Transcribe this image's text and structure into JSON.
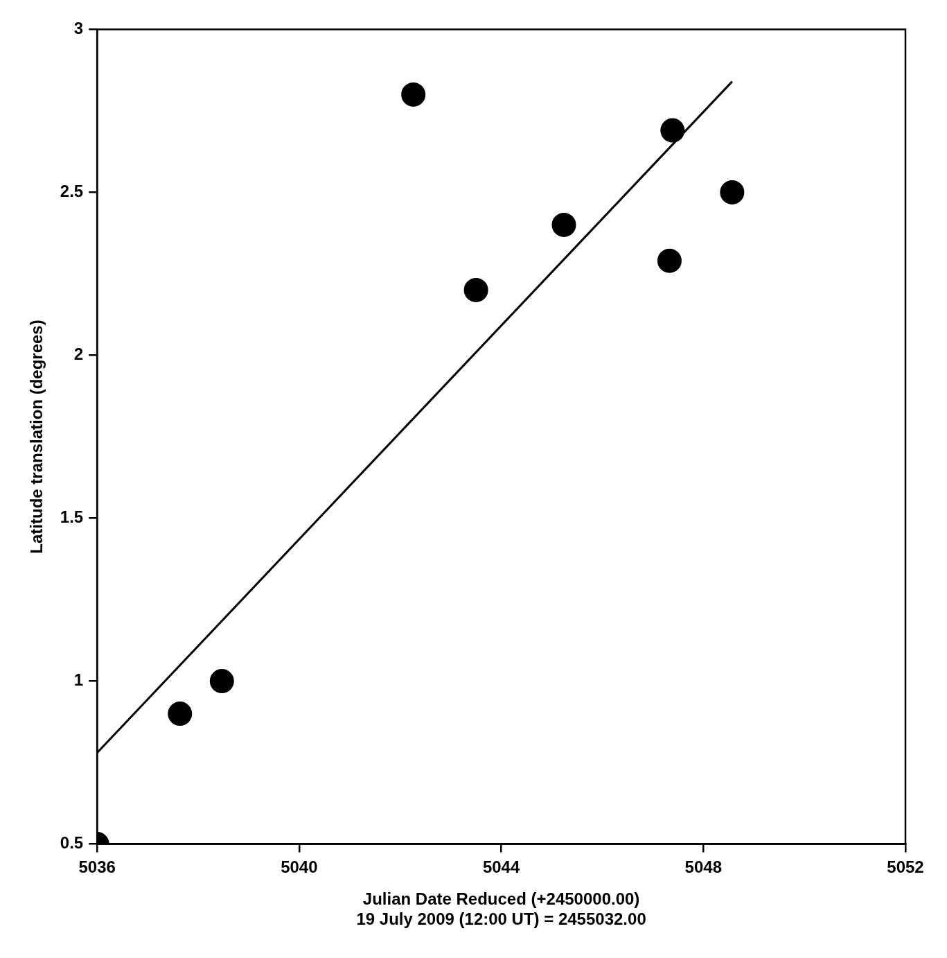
{
  "chart_data": {
    "type": "scatter",
    "x_label": [
      "Julian Date Reduced (+2450000.00)",
      "19 July 2009 (12:00 UT) = 2455032.00"
    ],
    "y_label": "Latitude translation (degrees)",
    "xlim": [
      5036,
      5052
    ],
    "xticks": [
      5036,
      5040,
      5044,
      5048,
      5052
    ],
    "ylim": [
      0.5,
      3
    ],
    "yticks": [
      0.5,
      1,
      1.5,
      2,
      2.5,
      3
    ],
    "grid": false,
    "series": [
      {
        "type": "scatter",
        "marker": "circle",
        "color": "#000000",
        "x": [
          5036,
          5037.64,
          5038.47,
          5042.26,
          5043.5,
          5045.24,
          5047.39,
          5047.33,
          5048.57
        ],
        "values": [
          0.5,
          0.9,
          1.0,
          2.8,
          2.2,
          2.4,
          2.69,
          2.29,
          2.5
        ]
      },
      {
        "type": "line",
        "line_style": "solid",
        "color": "#000000",
        "x": [
          5036,
          5048.57
        ],
        "values": [
          0.78,
          2.84
        ]
      }
    ]
  }
}
